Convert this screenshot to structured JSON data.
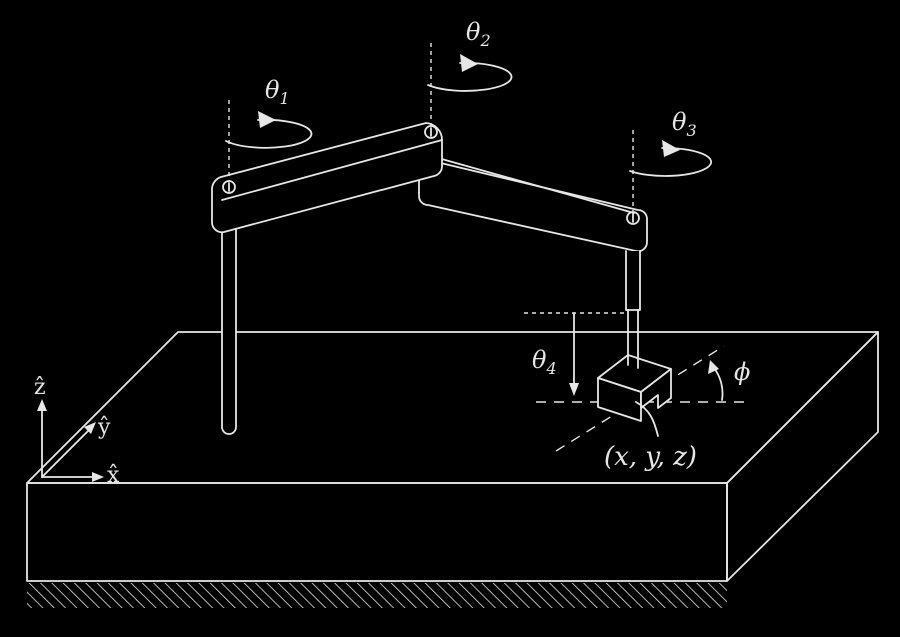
{
  "labels": {
    "theta1": "θ",
    "theta1_sub": "1",
    "theta2": "θ",
    "theta2_sub": "2",
    "theta3": "θ",
    "theta3_sub": "3",
    "theta4": "θ",
    "theta4_sub": "4",
    "phi": "ϕ",
    "position": "(x, y, z)",
    "axis_z": "ẑ",
    "axis_y": "ŷ",
    "axis_x": "x̂"
  },
  "colors": {
    "background": "#000000",
    "line": "#e6e6e6"
  }
}
